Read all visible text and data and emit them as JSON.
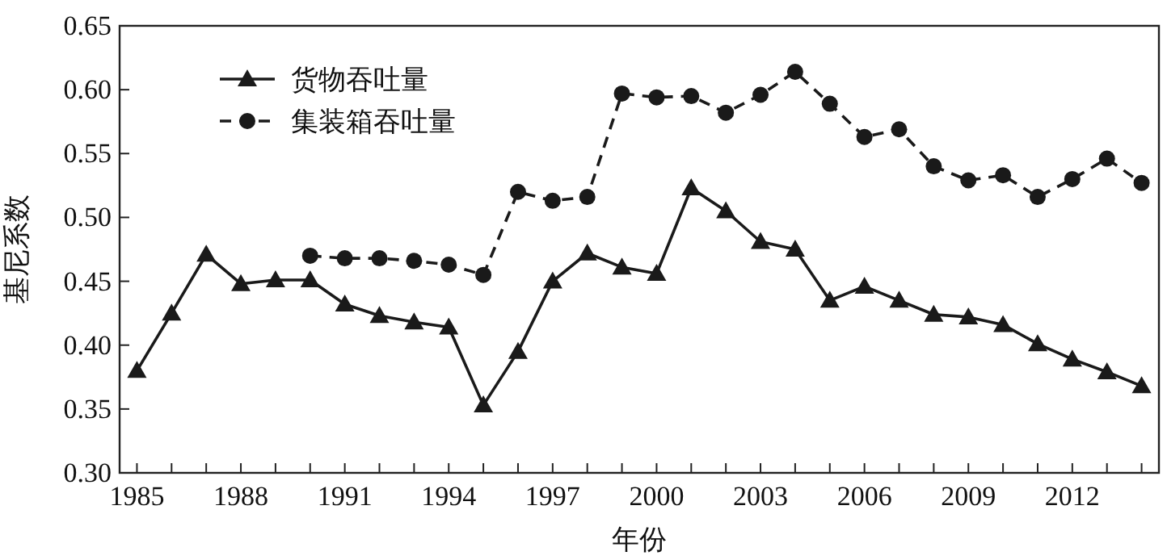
{
  "chart_data": {
    "type": "line",
    "xlabel": "年份",
    "ylabel": "基尼系数",
    "x": [
      1985,
      1986,
      1987,
      1988,
      1989,
      1990,
      1991,
      1992,
      1993,
      1994,
      1995,
      1996,
      1997,
      1998,
      1999,
      2000,
      2001,
      2002,
      2003,
      2004,
      2005,
      2006,
      2007,
      2008,
      2009,
      2010,
      2011,
      2012,
      2013,
      2014
    ],
    "series": [
      {
        "name": "货物吞吐量",
        "color": "#1a1a1a",
        "marker": "triangle",
        "line_style": "solid",
        "values": [
          0.38,
          0.425,
          0.471,
          0.448,
          0.451,
          0.451,
          0.432,
          0.423,
          0.418,
          0.414,
          0.353,
          0.395,
          0.45,
          0.472,
          0.461,
          0.456,
          0.523,
          0.505,
          0.481,
          0.475,
          0.435,
          0.446,
          0.435,
          0.424,
          0.422,
          0.416,
          0.401,
          0.389,
          0.379,
          0.368
        ]
      },
      {
        "name": "集装箱吞吐量",
        "color": "#1a1a1a",
        "marker": "circle",
        "line_style": "dashed",
        "values": [
          null,
          null,
          null,
          null,
          null,
          0.47,
          0.468,
          0.468,
          0.466,
          0.463,
          0.455,
          0.52,
          0.513,
          0.516,
          0.597,
          0.594,
          0.595,
          0.582,
          0.596,
          0.614,
          0.589,
          0.563,
          0.569,
          0.54,
          0.529,
          0.533,
          0.516,
          0.53,
          0.546,
          0.527
        ]
      }
    ],
    "xlim": [
      1984.5,
      2014.5
    ],
    "xticks": [
      1985,
      {
        "value": 1986,
        "label": null
      },
      {
        "value": 1987,
        "label": null
      },
      1988,
      {
        "value": 1989,
        "label": null
      },
      {
        "value": 1990,
        "label": null
      },
      1991,
      {
        "value": 1992,
        "label": null
      },
      {
        "value": 1993,
        "label": null
      },
      1994,
      {
        "value": 1995,
        "label": null
      },
      {
        "value": 1996,
        "label": null
      },
      1997,
      {
        "value": 1998,
        "label": null
      },
      {
        "value": 1999,
        "label": null
      },
      2000,
      {
        "value": 2001,
        "label": null
      },
      {
        "value": 2002,
        "label": null
      },
      2003,
      {
        "value": 2004,
        "label": null
      },
      {
        "value": 2005,
        "label": null
      },
      2006,
      {
        "value": 2007,
        "label": null
      },
      {
        "value": 2008,
        "label": null
      },
      2009,
      {
        "value": 2010,
        "label": null
      },
      {
        "value": 2011,
        "label": null
      },
      2012,
      {
        "value": 2013,
        "label": null
      },
      {
        "value": 2014,
        "label": null
      }
    ],
    "ylim": [
      0.3,
      0.65
    ],
    "yticks": [
      {
        "value": 0.3,
        "label": "0.30"
      },
      {
        "value": 0.35,
        "label": "0.35"
      },
      {
        "value": 0.4,
        "label": "0.40"
      },
      {
        "value": 0.45,
        "label": "0.45"
      },
      {
        "value": 0.5,
        "label": "0.50"
      },
      {
        "value": 0.55,
        "label": "0.55"
      },
      {
        "value": 0.6,
        "label": "0.60"
      },
      {
        "value": 0.65,
        "label": "0.65"
      }
    ],
    "grid": false,
    "legend": "top left"
  }
}
